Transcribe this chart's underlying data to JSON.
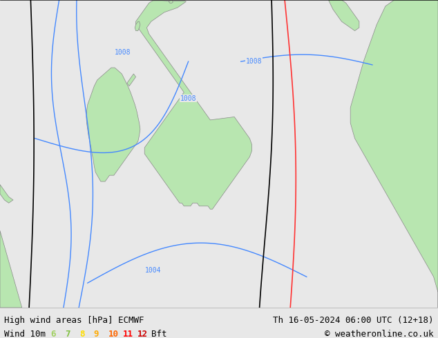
{
  "title_left": "High wind areas [hPa] ECMWF",
  "title_right": "Th 16-05-2024 06:00 UTC (12+18)",
  "subtitle_left": "Wind 10m",
  "copyright": "© weatheronline.co.uk",
  "legend_numbers": [
    "6",
    "7",
    "8",
    "9",
    "10",
    "11",
    "12"
  ],
  "legend_colors": [
    "#a0d060",
    "#80c040",
    "#ffdd00",
    "#ffaa00",
    "#ff6600",
    "#ff0000",
    "#cc0000"
  ],
  "legend_suffix": "Bft",
  "bg_color": "#e8e8e8",
  "map_bg": "#e8e8e8",
  "land_color": "#b8e6b0",
  "sea_color": "#e8e8e8",
  "contour_color_blue": "#4488ff",
  "contour_color_black": "#000000",
  "contour_color_red": "#ff3333",
  "border_color": "#888888",
  "font_size_title": 9,
  "font_size_legend": 9,
  "bottom_bar_color": "#ffffff"
}
